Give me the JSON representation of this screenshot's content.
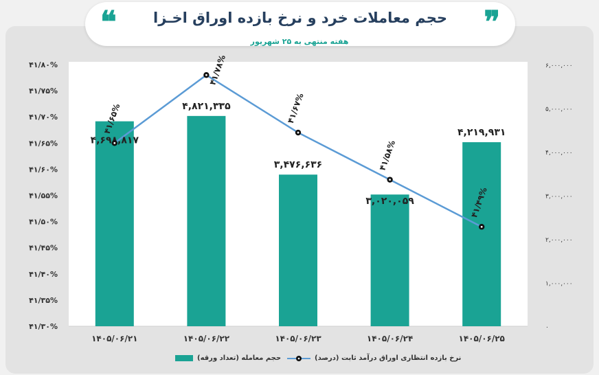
{
  "header": {
    "title": "حجم معاملات خرد و نرخ بازده اوراق اخـزا",
    "subtitle": "هفته منتهی به ۲۵ شهریور",
    "quote_right": "❞",
    "quote_left": "❝"
  },
  "colors": {
    "bar": "#1aa394",
    "line": "#5b9bd5",
    "title": "#263f5e",
    "plot_bg": "#ffffff"
  },
  "legend": {
    "bar_label": "حجم معامله (تعداد ورقه)",
    "line_label": "نرخ بازده انتظاری اوراق درآمد ثابت (درصد)"
  },
  "chart_data": {
    "type": "bar+line",
    "categories": [
      "۱۴۰۵/۰۶/۲۱",
      "۱۴۰۵/۰۶/۲۲",
      "۱۴۰۵/۰۶/۲۳",
      "۱۴۰۵/۰۶/۲۴",
      "۱۴۰۵/۰۶/۲۵"
    ],
    "bar_series": {
      "name": "حجم معامله (تعداد ورقه)",
      "values": [
        4698817,
        4821335,
        3476636,
        3020059,
        4219931
      ],
      "labels": [
        "۴,۶۹۸,۸۱۷",
        "۴,۸۲۱,۳۳۵",
        "۳,۴۷۶,۶۳۶",
        "۳,۰۲۰,۰۵۹",
        "۴,۲۱۹,۹۳۱"
      ]
    },
    "line_series": {
      "name": "نرخ بازده انتظاری اوراق درآمد ثابت (درصد)",
      "values": [
        41.65,
        41.78,
        41.67,
        41.58,
        41.49
      ],
      "labels": [
        "۴۱/۶۵%",
        "۴۱/۷۸%",
        "۴۱/۶۷%",
        "۴۱/۵۸%",
        "۴۱/۴۹%"
      ]
    },
    "y_left": {
      "range": [
        41.3,
        41.8
      ],
      "ticks": [
        "۴۱/۳۰%",
        "۴۱/۳۵%",
        "۴۱/۴۰%",
        "۴۱/۴۵%",
        "۴۱/۵۰%",
        "۴۱/۵۵%",
        "۴۱/۶۰%",
        "۴۱/۶۵%",
        "۴۱/۷۰%",
        "۴۱/۷۵%",
        "۴۱/۸۰%"
      ]
    },
    "y_right": {
      "range": [
        0,
        6000000
      ],
      "ticks": [
        "۰",
        "۱,۰۰۰,۰۰۰",
        "۲,۰۰۰,۰۰۰",
        "۳,۰۰۰,۰۰۰",
        "۴,۰۰۰,۰۰۰",
        "۵,۰۰۰,۰۰۰",
        "۶,۰۰۰,۰۰۰"
      ]
    }
  }
}
